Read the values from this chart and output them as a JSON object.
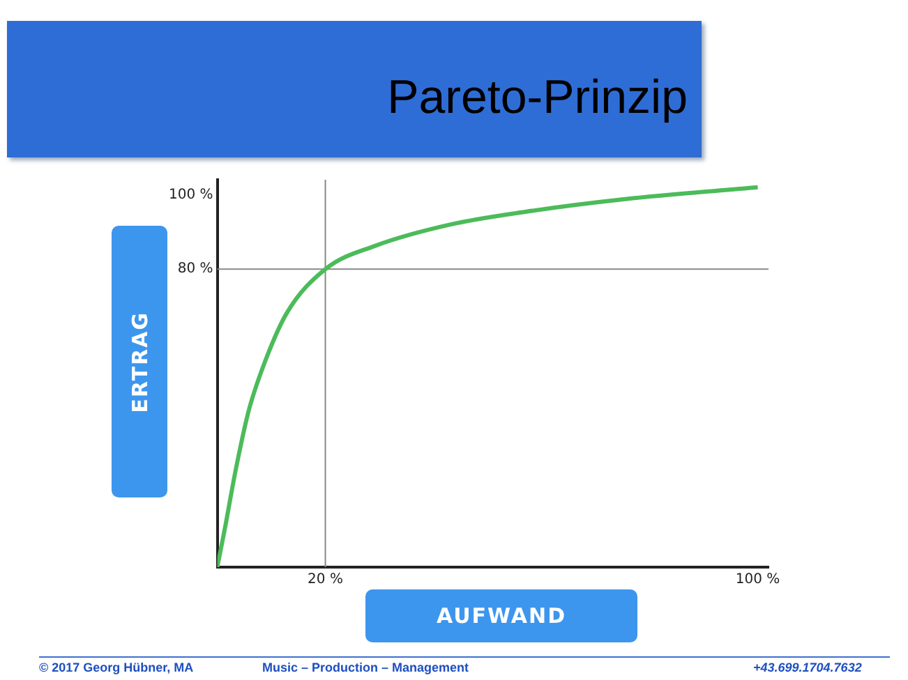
{
  "chart_data": {
    "type": "line",
    "title": "Pareto-Prinzip",
    "xlabel": "AUFWAND",
    "ylabel": "ERTRAG",
    "x": [
      0,
      1.4,
      3.4,
      5.8,
      9,
      12.9,
      20,
      29.3,
      43.2,
      57,
      75.5,
      100
    ],
    "series": [
      {
        "color": "#4cbb5a",
        "values": [
          0,
          10.3,
          26,
          41.9,
          55.8,
          68.3,
          80,
          86.3,
          92,
          95.4,
          98.8,
          102
        ]
      }
    ],
    "xlim": [
      0,
      102
    ],
    "ylim": [
      0,
      104
    ],
    "xticks": [
      {
        "value": 20,
        "label": "20 %"
      },
      {
        "value": 100,
        "label": "100 %"
      }
    ],
    "yticks": [
      {
        "value": 80,
        "label": "80 %"
      },
      {
        "value": 100,
        "label": "100 %"
      }
    ],
    "ref_lines": [
      {
        "axis": "x",
        "value": 20,
        "color": "#888888"
      },
      {
        "axis": "y",
        "value": 80,
        "color": "#888888"
      }
    ],
    "grid": false,
    "legend": false,
    "marker": "none",
    "line_style": "solid",
    "annotations": [
      "© 2017 Georg Hübner, MA",
      "Music – Production – Management",
      "+43.699.1704.7632"
    ]
  }
}
